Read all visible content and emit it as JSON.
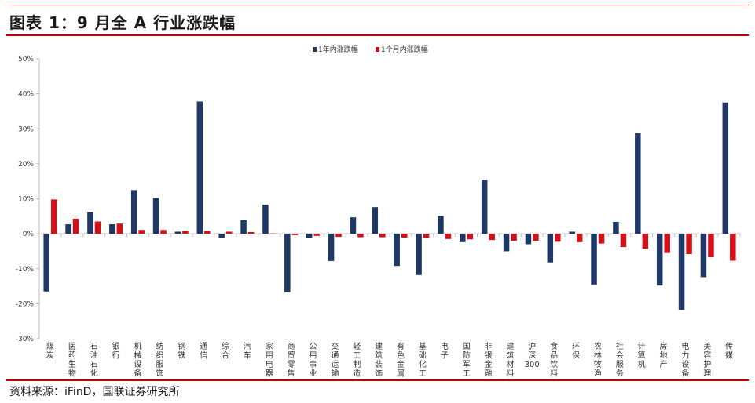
{
  "header": {
    "title": "图表 1：9 月全 A 行业涨跌幅"
  },
  "footer": {
    "source": "资料来源：iFinD，国联证券研究所"
  },
  "colors": {
    "accent": "#c00000",
    "series1": "#1f3864",
    "series2": "#d0121b",
    "axis": "#bfbfbf",
    "text": "#333333"
  },
  "chart_data": {
    "type": "bar",
    "title": "",
    "xlabel": "",
    "ylabel": "",
    "ylim": [
      -30,
      50
    ],
    "yticks": [
      -30,
      -20,
      -10,
      0,
      10,
      20,
      30,
      40,
      50
    ],
    "ytick_labels": [
      "-30%",
      "-20%",
      "-10%",
      "0%",
      "10%",
      "20%",
      "30%",
      "40%",
      "50%"
    ],
    "grid": false,
    "legend_position": "top-center",
    "categories": [
      "煤炭",
      "医药生物",
      "石油石化",
      "银行",
      "机械设备",
      "纺织服饰",
      "钢铁",
      "通信",
      "综合",
      "汽车",
      "家用电器",
      "商贸零售",
      "公用事业",
      "交通运输",
      "轻工制造",
      "建筑装饰",
      "有色金属",
      "基础化工",
      "电子",
      "国防军工",
      "非银金融",
      "建筑材料",
      "沪深300",
      "食品饮料",
      "环保",
      "农林牧渔",
      "社会服务",
      "计算机",
      "房地产",
      "电力设备",
      "美容护理",
      "传媒"
    ],
    "series": [
      {
        "name": "1年内涨跌幅",
        "values": [
          -16.5,
          2.7,
          6.2,
          2.7,
          12.5,
          10.2,
          0.6,
          37.8,
          -1.2,
          3.9,
          8.3,
          -16.7,
          -1.3,
          -7.8,
          4.7,
          7.6,
          -9.2,
          -11.8,
          5.1,
          -2.4,
          15.5,
          -5.0,
          -3.0,
          -8.2,
          0.6,
          -14.5,
          3.4,
          28.7,
          -14.8,
          -21.8,
          -12.4,
          37.5
        ]
      },
      {
        "name": "1个月内涨跌幅",
        "values": [
          9.8,
          4.3,
          3.5,
          2.9,
          1.1,
          1.1,
          0.8,
          0.8,
          0.6,
          0.5,
          0.1,
          -0.4,
          -0.6,
          -0.9,
          -1.0,
          -1.0,
          -1.1,
          -1.2,
          -1.5,
          -1.6,
          -1.8,
          -2.0,
          -2.0,
          -2.3,
          -2.4,
          -2.8,
          -3.8,
          -4.3,
          -5.5,
          -5.8,
          -6.7,
          -7.7
        ]
      }
    ]
  }
}
